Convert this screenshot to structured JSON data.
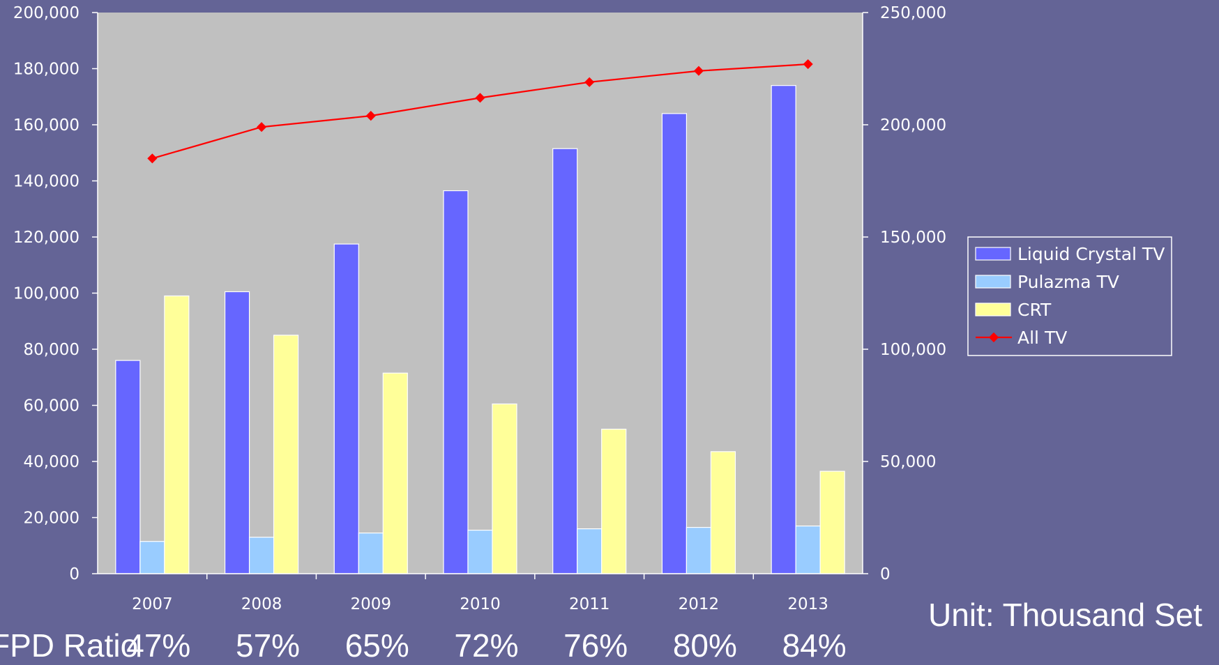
{
  "chart_data": {
    "type": "bar",
    "categories": [
      "2007",
      "2008",
      "2009",
      "2010",
      "2011",
      "2012",
      "2013"
    ],
    "series": [
      {
        "name": "Liquid Crystal TV",
        "type": "bar",
        "axis": "left",
        "color": "#6666ff",
        "values": [
          76000,
          100500,
          117500,
          136500,
          151500,
          164000,
          174000
        ]
      },
      {
        "name": "Pulazma TV",
        "type": "bar",
        "axis": "left",
        "color": "#99ccff",
        "values": [
          11500,
          13000,
          14500,
          15500,
          16000,
          16500,
          17000
        ]
      },
      {
        "name": "CRT",
        "type": "bar",
        "axis": "left",
        "color": "#ffff99",
        "values": [
          99000,
          85000,
          71500,
          60500,
          51500,
          43500,
          36500
        ]
      },
      {
        "name": "All TV",
        "type": "line",
        "axis": "right",
        "color": "#ff0000",
        "values": [
          185000,
          199000,
          204000,
          212000,
          219000,
          224000,
          227000
        ]
      }
    ],
    "y_left": {
      "min": 0,
      "max": 200000,
      "step": 20000,
      "tick_labels": [
        "0",
        "20,000",
        "40,000",
        "60,000",
        "80,000",
        "100,000",
        "120,000",
        "140,000",
        "160,000",
        "180,000",
        "200,000"
      ]
    },
    "y_right": {
      "min": 0,
      "max": 250000,
      "step": 50000,
      "tick_labels": [
        "0",
        "50,000",
        "100,000",
        "150,000",
        "200,000",
        "250,000"
      ]
    },
    "grid": false,
    "legend_position": "right",
    "plot_background": "#c0c0c0",
    "unit_label": "Unit: Thousand Set",
    "fpd_ratio": {
      "label": "FPD Ratio",
      "values": [
        "47%",
        "57%",
        "65%",
        "72%",
        "76%",
        "80%",
        "84%"
      ]
    }
  }
}
